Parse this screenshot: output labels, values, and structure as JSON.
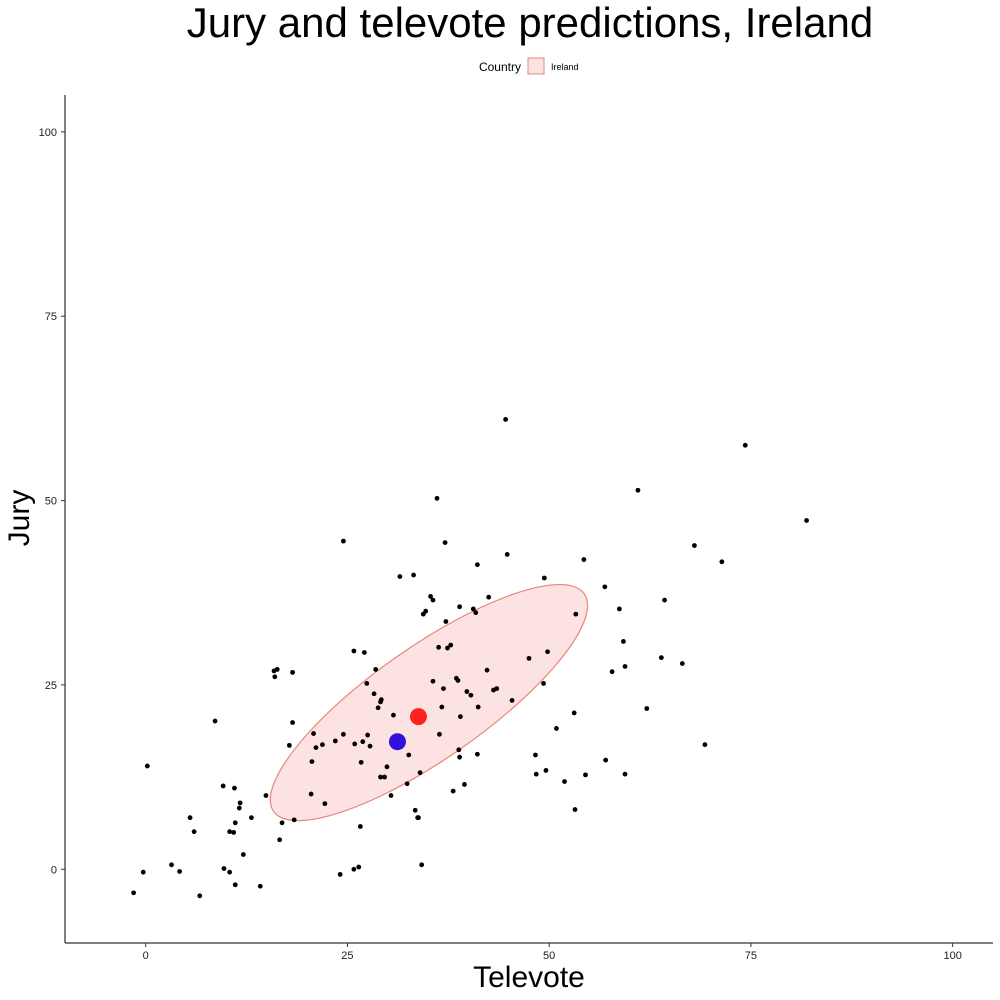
{
  "chart_data": {
    "type": "scatter",
    "title": "Jury and televote predictions, Ireland",
    "xlabel": "Televote",
    "ylabel": "Jury",
    "xlim": [
      -10,
      105
    ],
    "ylim": [
      -10,
      105
    ],
    "x_ticks": [
      "0",
      "25",
      "50",
      "75",
      "100"
    ],
    "y_ticks": [
      "0",
      "25",
      "50",
      "75",
      "100"
    ],
    "grid": false,
    "legend": {
      "title": "Country",
      "placement": "top-center",
      "entries": [
        {
          "label": "Ireland",
          "fill": "#fde2e2",
          "stroke": "#e8867a"
        }
      ]
    },
    "ellipse": {
      "series": "Ireland",
      "center": [
        35.1,
        22.6
      ],
      "rx": 23.5,
      "ry": 7.6,
      "angle_deg": 35,
      "fill": "#fde2e2",
      "stroke": "#e8867a"
    },
    "highlight_points": [
      {
        "x": 33.8,
        "y": 20.7,
        "color": "#ff2020"
      },
      {
        "x": 31.2,
        "y": 17.3,
        "color": "#3311dd"
      }
    ],
    "point_color": "#000000",
    "points": [
      [
        -1.5,
        -3.2
      ],
      [
        -0.3,
        -0.4
      ],
      [
        0.2,
        14.0
      ],
      [
        3.2,
        0.6
      ],
      [
        4.2,
        -0.3
      ],
      [
        5.5,
        7.0
      ],
      [
        6.0,
        5.1
      ],
      [
        6.7,
        -3.6
      ],
      [
        8.6,
        20.1
      ],
      [
        9.6,
        11.3
      ],
      [
        9.7,
        0.1
      ],
      [
        10.4,
        5.1
      ],
      [
        10.4,
        -0.4
      ],
      [
        10.9,
        5.0
      ],
      [
        11.0,
        11.0
      ],
      [
        11.1,
        6.3
      ],
      [
        11.1,
        -2.1
      ],
      [
        11.6,
        8.3
      ],
      [
        11.7,
        9.0
      ],
      [
        12.1,
        2.0
      ],
      [
        13.1,
        7.0
      ],
      [
        14.2,
        -2.3
      ],
      [
        14.9,
        10.0
      ],
      [
        15.9,
        26.9
      ],
      [
        16.0,
        26.1
      ],
      [
        16.3,
        27.1
      ],
      [
        16.6,
        4.0
      ],
      [
        16.9,
        6.3
      ],
      [
        17.8,
        16.8
      ],
      [
        18.2,
        26.7
      ],
      [
        18.2,
        19.9
      ],
      [
        18.4,
        6.7
      ],
      [
        20.5,
        10.2
      ],
      [
        20.6,
        14.6
      ],
      [
        20.8,
        18.4
      ],
      [
        21.1,
        16.5
      ],
      [
        21.9,
        16.9
      ],
      [
        22.2,
        8.9
      ],
      [
        23.5,
        17.4
      ],
      [
        24.1,
        -0.7
      ],
      [
        24.5,
        44.5
      ],
      [
        24.5,
        18.3
      ],
      [
        25.8,
        29.6
      ],
      [
        25.9,
        17.0
      ],
      [
        25.8,
        0.0
      ],
      [
        26.4,
        0.3
      ],
      [
        26.6,
        5.8
      ],
      [
        26.7,
        14.5
      ],
      [
        26.9,
        17.3
      ],
      [
        27.1,
        29.4
      ],
      [
        27.5,
        18.2
      ],
      [
        27.4,
        25.2
      ],
      [
        27.8,
        16.7
      ],
      [
        28.3,
        23.8
      ],
      [
        28.5,
        27.1
      ],
      [
        28.8,
        21.9
      ],
      [
        29.1,
        22.7
      ],
      [
        29.2,
        23.0
      ],
      [
        29.1,
        12.5
      ],
      [
        29.6,
        12.5
      ],
      [
        29.9,
        13.9
      ],
      [
        30.4,
        10.0
      ],
      [
        30.7,
        20.9
      ],
      [
        31.5,
        39.7
      ],
      [
        31.7,
        17.0
      ],
      [
        32.4,
        11.6
      ],
      [
        32.6,
        15.5
      ],
      [
        33.2,
        39.9
      ],
      [
        33.4,
        8.0
      ],
      [
        33.7,
        7.0
      ],
      [
        33.8,
        7.0
      ],
      [
        34.0,
        13.1
      ],
      [
        34.2,
        0.6
      ],
      [
        34.4,
        34.6
      ],
      [
        34.7,
        35.0
      ],
      [
        35.3,
        37.0
      ],
      [
        35.6,
        25.5
      ],
      [
        35.6,
        36.5
      ],
      [
        36.1,
        50.3
      ],
      [
        36.3,
        30.1
      ],
      [
        36.4,
        18.3
      ],
      [
        36.7,
        22.0
      ],
      [
        36.9,
        24.5
      ],
      [
        37.1,
        44.3
      ],
      [
        37.2,
        33.6
      ],
      [
        37.4,
        30.0
      ],
      [
        37.8,
        30.4
      ],
      [
        38.1,
        10.6
      ],
      [
        38.5,
        25.9
      ],
      [
        38.7,
        25.6
      ],
      [
        38.8,
        16.2
      ],
      [
        38.9,
        15.2
      ],
      [
        39.0,
        20.7
      ],
      [
        38.9,
        35.6
      ],
      [
        39.5,
        11.5
      ],
      [
        39.8,
        24.1
      ],
      [
        40.3,
        23.6
      ],
      [
        40.6,
        35.3
      ],
      [
        40.9,
        34.8
      ],
      [
        41.1,
        41.3
      ],
      [
        41.2,
        22.0
      ],
      [
        41.1,
        15.6
      ],
      [
        42.3,
        27.0
      ],
      [
        42.5,
        36.9
      ],
      [
        43.1,
        24.3
      ],
      [
        43.5,
        24.5
      ],
      [
        44.6,
        61.0
      ],
      [
        44.8,
        42.7
      ],
      [
        45.4,
        22.9
      ],
      [
        47.5,
        28.6
      ],
      [
        48.3,
        15.5
      ],
      [
        48.4,
        12.9
      ],
      [
        49.3,
        25.2
      ],
      [
        49.4,
        39.5
      ],
      [
        49.6,
        13.4
      ],
      [
        49.8,
        29.5
      ],
      [
        50.9,
        19.1
      ],
      [
        51.9,
        11.9
      ],
      [
        53.1,
        21.2
      ],
      [
        53.2,
        8.1
      ],
      [
        53.3,
        34.6
      ],
      [
        54.3,
        42.0
      ],
      [
        54.5,
        12.8
      ],
      [
        56.9,
        38.3
      ],
      [
        57.0,
        14.8
      ],
      [
        57.8,
        26.8
      ],
      [
        58.7,
        35.3
      ],
      [
        59.2,
        30.9
      ],
      [
        59.4,
        27.5
      ],
      [
        59.4,
        12.9
      ],
      [
        61.0,
        51.4
      ],
      [
        62.1,
        21.8
      ],
      [
        63.9,
        28.7
      ],
      [
        64.3,
        36.5
      ],
      [
        66.5,
        27.9
      ],
      [
        68.0,
        43.9
      ],
      [
        69.3,
        16.9
      ],
      [
        71.4,
        41.7
      ],
      [
        74.3,
        57.5
      ],
      [
        81.9,
        47.3
      ]
    ]
  }
}
